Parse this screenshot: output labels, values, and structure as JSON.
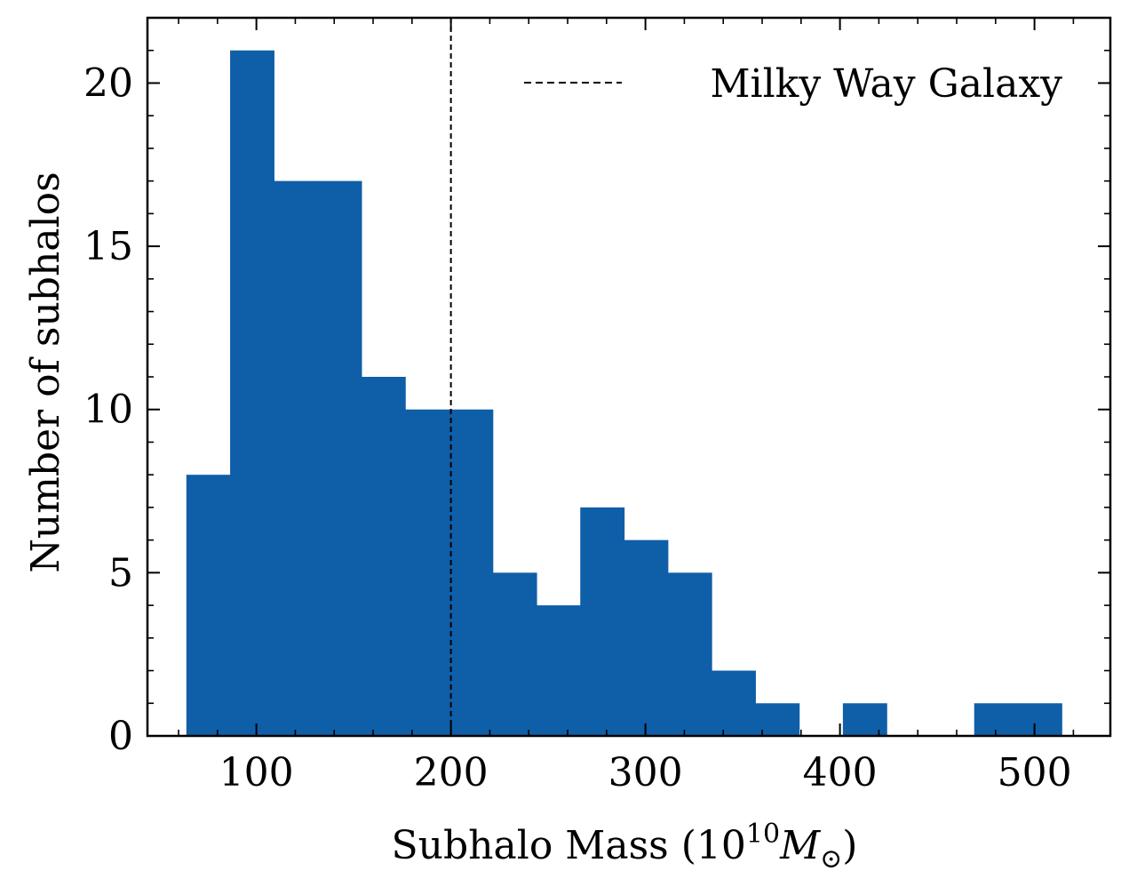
{
  "chart_data": {
    "type": "bar",
    "histogram": true,
    "xlabel": "Subhalo Mass (",
    "xlabel_power_base": "10",
    "xlabel_exponent": "10",
    "xlabel_symbol": "M",
    "xlabel_subscript": "⊙",
    "xlabel_close": ")",
    "ylabel": "Number of subhalos",
    "xlim": [
      44,
      539
    ],
    "ylim": [
      0,
      22
    ],
    "x_ticks": [
      100,
      200,
      300,
      400,
      500
    ],
    "x_tick_labels": [
      "100",
      "200",
      "300",
      "400",
      "500"
    ],
    "y_ticks": [
      0,
      5,
      10,
      15,
      20
    ],
    "y_tick_labels": [
      "0",
      "5",
      "10",
      "15",
      "20"
    ],
    "bin_edges": [
      64,
      86.5,
      109,
      131.5,
      154,
      176.5,
      199,
      221.5,
      244,
      266.5,
      289,
      311.5,
      334,
      356.5,
      379,
      401.5,
      424,
      446.5,
      469,
      491.5,
      514
    ],
    "counts": [
      8,
      21,
      17,
      17,
      11,
      10,
      10,
      5,
      4,
      7,
      6,
      5,
      2,
      1,
      0,
      1,
      0,
      0,
      1,
      1
    ],
    "bar_color": "#0f5ea8",
    "reference_line": {
      "x": 200,
      "style": "dashed",
      "color": "#000000",
      "label": "Milky Way Galaxy"
    },
    "legend_position": "top-right",
    "grid": false
  }
}
